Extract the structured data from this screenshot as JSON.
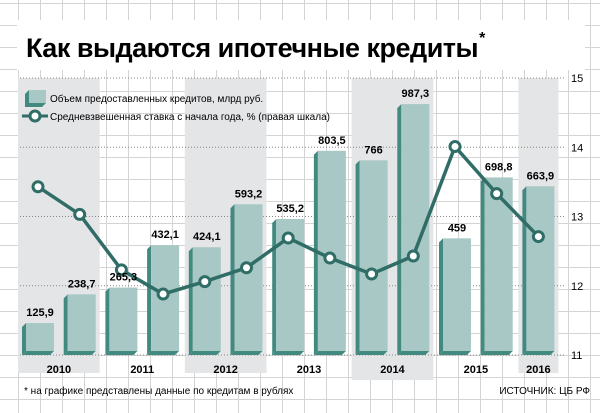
{
  "chart_data": {
    "type": "bar+line",
    "title": "Как выдаются ипотечные кредиты",
    "title_mark": "*",
    "legend": [
      {
        "label": "Объем предоставленных кредитов, млрд руб.",
        "type": "bar"
      },
      {
        "label": "Средневзвешенная ставка с начала года, % (правая шкала)",
        "type": "line"
      }
    ],
    "legend_placement": "top-left",
    "bar_values": [
      125.9,
      238.7,
      265.3,
      432.1,
      424.1,
      593.2,
      535.2,
      803.5,
      766,
      987.3,
      459,
      698.8,
      663.9
    ],
    "bar_labels": [
      "125,9",
      "238,7",
      "265,3",
      "432,1",
      "424,1",
      "593,2",
      "535,2",
      "803,5",
      "766",
      "987,3",
      "459",
      "698,8",
      "663,9"
    ],
    "line_values": [
      13.43,
      13.03,
      12.23,
      11.88,
      12.06,
      12.26,
      12.69,
      12.4,
      12.17,
      12.43,
      14.01,
      13.33,
      12.71
    ],
    "left_ylim": [
      0,
      1090
    ],
    "right_ylim": [
      11,
      15
    ],
    "right_ticks": [
      "11",
      "12",
      "13",
      "14",
      "15"
    ],
    "years": [
      {
        "label": "2010",
        "first": 0,
        "last": 1
      },
      {
        "label": "2011",
        "first": 2,
        "last": 3
      },
      {
        "label": "2012",
        "first": 4,
        "last": 5
      },
      {
        "label": "2013",
        "first": 6,
        "last": 7
      },
      {
        "label": "2014",
        "first": 8,
        "last": 9
      },
      {
        "label": "2015",
        "first": 10,
        "last": 11
      },
      {
        "label": "2016",
        "first": 12,
        "last": 12
      }
    ],
    "footnote": "* на графике представлены данные по кредитам в рублях",
    "source": "ИСТОЧНИК: ЦБ РФ",
    "colors": {
      "bar_face": "#a8c8c5",
      "bar_side": "#428a80",
      "line": "#2f6d66",
      "stripe": "#e4e5e7"
    }
  }
}
